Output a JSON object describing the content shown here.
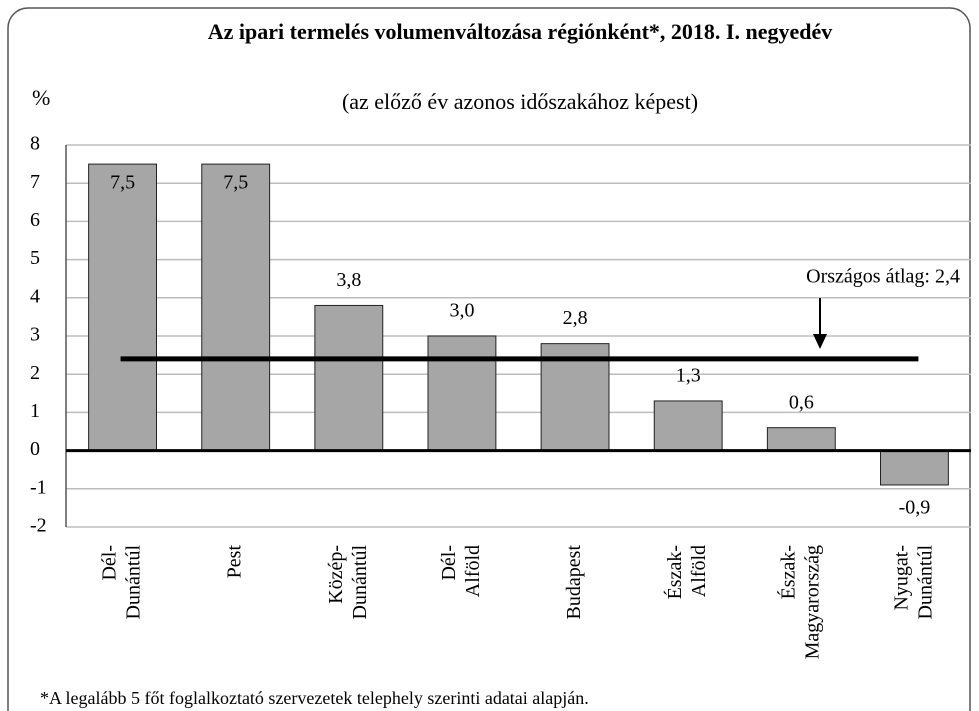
{
  "chart_data": {
    "type": "bar",
    "title": "Az ipari termelés volumenváltozása régiónként*, 2018. I. negyedév",
    "subtitle": "(az előző év azonos időszakához képest)",
    "ylabel": "%",
    "categories": [
      "Dél-\nDunántúl",
      "Pest",
      "Közép-\nDunántúl",
      "Dél-\nAlföld",
      "Budapest",
      "Észak-\nAlföld",
      "Észak-\nMagyarország",
      "Nyugat-\nDunántúl"
    ],
    "values": [
      7.5,
      7.5,
      3.8,
      3.0,
      2.8,
      1.3,
      0.6,
      -0.9
    ],
    "value_labels": [
      "7,5",
      "7,5",
      "3,8",
      "3,0",
      "2,8",
      "1,3",
      "0,6",
      "-0,9"
    ],
    "color": "#a6a6a6",
    "ylim": [
      -2,
      8
    ],
    "yticks": [
      -2,
      -1,
      0,
      1,
      2,
      3,
      4,
      5,
      6,
      7,
      8
    ],
    "grid": true,
    "reference_line": {
      "value": 2.4,
      "label": "Országos átlag: 2,4"
    },
    "footnote": "*A legalább 5 főt foglalkoztató szervezetek telephely szerinti adatai alapján."
  }
}
